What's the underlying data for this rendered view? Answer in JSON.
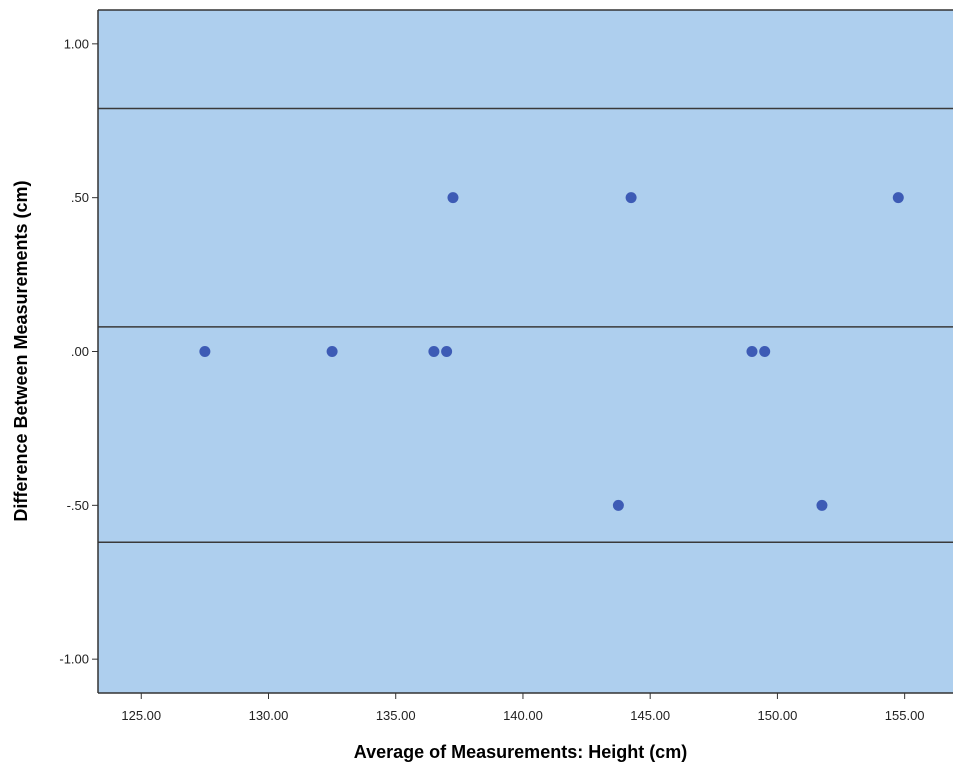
{
  "chart_data": {
    "type": "scatter",
    "xlabel": "Average of Measurements: Height (cm)",
    "ylabel": "Difference Between Measurements (cm)",
    "xlim": [
      123.3,
      156.9
    ],
    "ylim": [
      -1.11,
      1.11
    ],
    "x_ticks": [
      125,
      130,
      135,
      140,
      145,
      150,
      155
    ],
    "x_tick_labels": [
      "125.00",
      "130.00",
      "135.00",
      "140.00",
      "145.00",
      "150.00",
      "155.00"
    ],
    "y_ticks": [
      1,
      0.5,
      0,
      -0.5,
      -1
    ],
    "y_tick_labels": [
      "1.00",
      ".50",
      ".00",
      "-.50",
      "-1.00"
    ],
    "reference_lines": [
      0.79,
      0.08,
      -0.62
    ],
    "grid": false,
    "points": [
      {
        "x": 127.5,
        "y": 0
      },
      {
        "x": 132.5,
        "y": 0
      },
      {
        "x": 136.5,
        "y": 0
      },
      {
        "x": 137.0,
        "y": 0
      },
      {
        "x": 137.25,
        "y": 0.5
      },
      {
        "x": 143.75,
        "y": -0.5
      },
      {
        "x": 144.25,
        "y": 0.5
      },
      {
        "x": 149.0,
        "y": 0
      },
      {
        "x": 149.5,
        "y": 0
      },
      {
        "x": 151.75,
        "y": -0.5
      },
      {
        "x": 154.75,
        "y": 0.5
      }
    ],
    "colors": {
      "plot_background": "#aecfee",
      "point": "#3d5bb5",
      "reference_line": "#3a3a3a",
      "axis": "#333333"
    }
  }
}
